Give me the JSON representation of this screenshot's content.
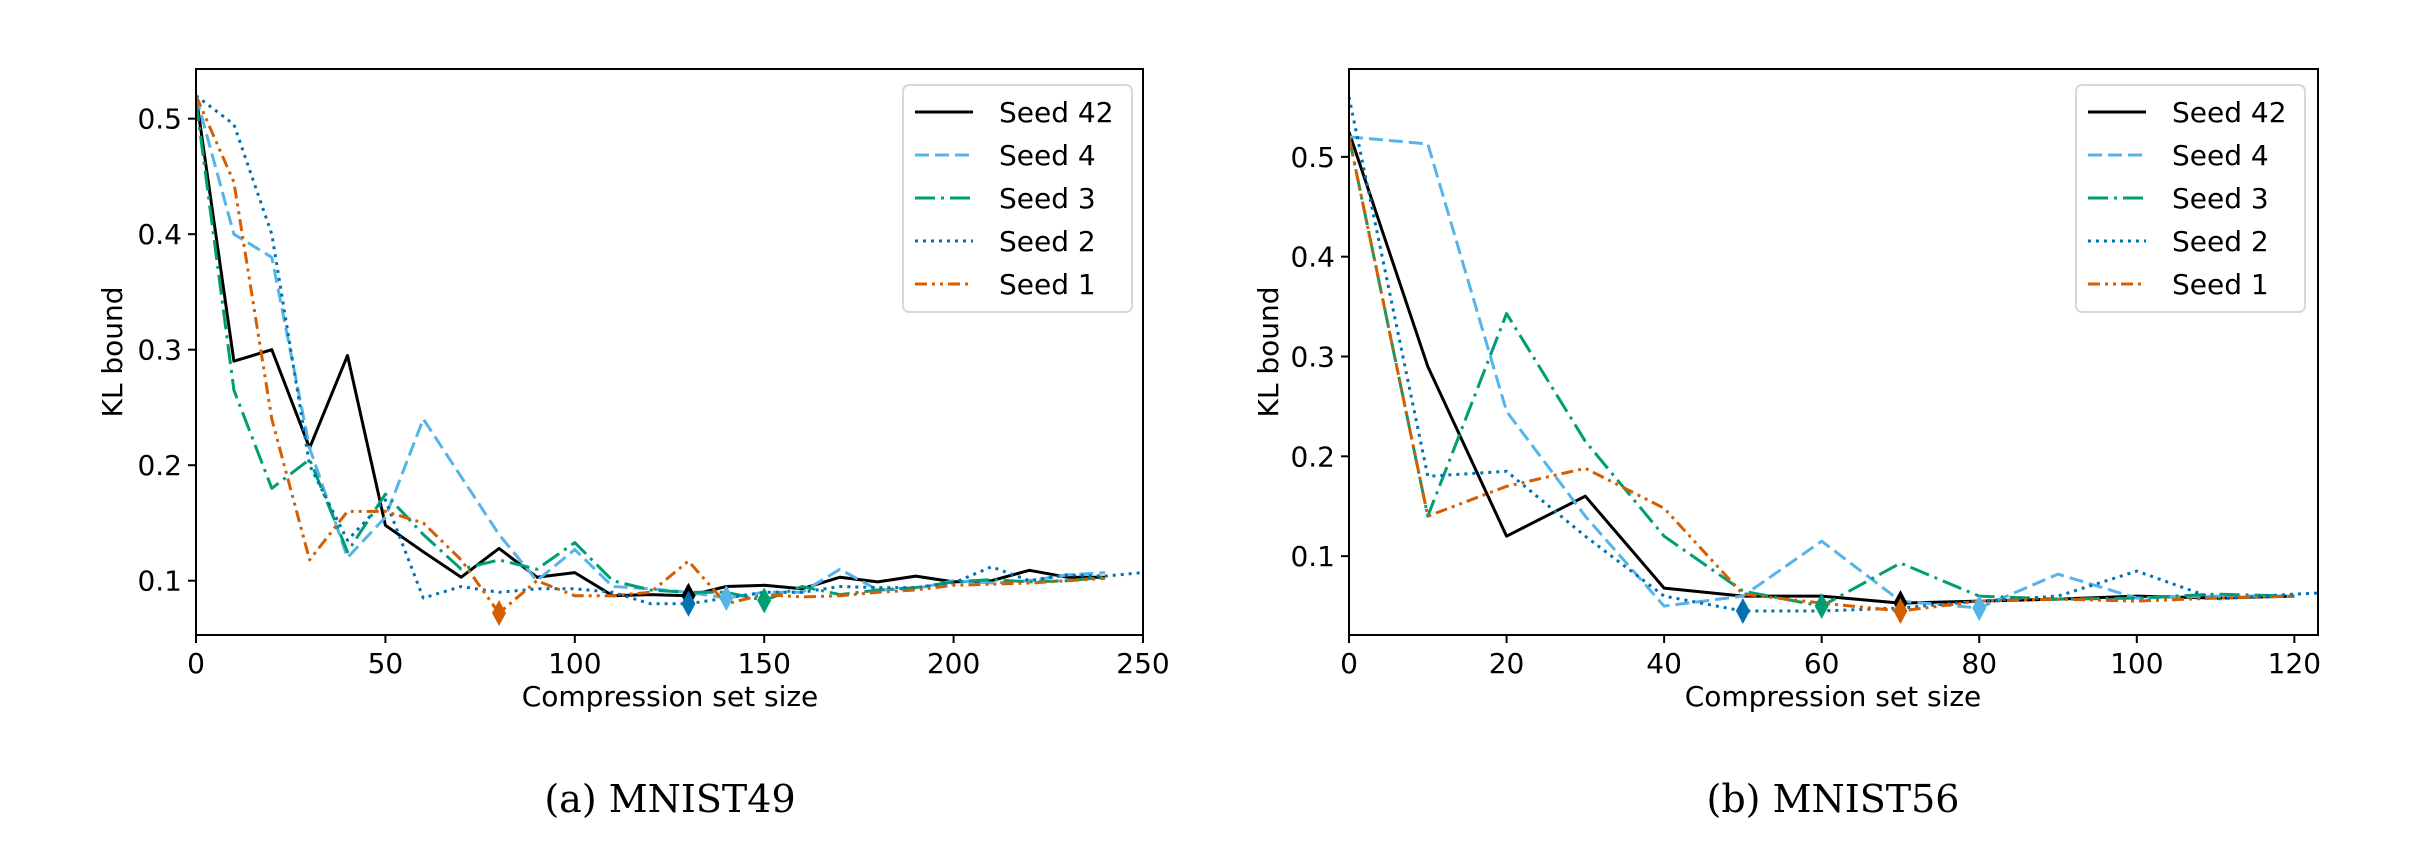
{
  "chart_data": [
    {
      "type": "line",
      "caption": "(a) MNIST49",
      "xlabel": "Compression set size",
      "ylabel": "KL bound",
      "xlim": [
        0,
        250
      ],
      "ylim": [
        0.053,
        0.543
      ],
      "xticks": [
        0,
        50,
        100,
        150,
        200,
        250
      ],
      "yticks": [
        0.1,
        0.2,
        0.3,
        0.4,
        0.5
      ],
      "grid": false,
      "legend_placement": "top-right",
      "series": [
        {
          "name": "Seed 42",
          "color": "#000000",
          "style": "solid",
          "x": [
            0,
            10,
            20,
            30,
            40,
            50,
            60,
            70,
            80,
            90,
            100,
            110,
            120,
            130,
            140,
            150,
            160,
            170,
            180,
            190,
            200,
            210,
            220,
            230,
            240
          ],
          "y": [
            0.52,
            0.29,
            0.3,
            0.215,
            0.295,
            0.148,
            0.125,
            0.103,
            0.128,
            0.103,
            0.107,
            0.087,
            0.088,
            0.087,
            0.095,
            0.096,
            0.093,
            0.103,
            0.099,
            0.104,
            0.099,
            0.1,
            0.109,
            0.103,
            0.103
          ],
          "marker_x": 130,
          "marker_y": 0.087
        },
        {
          "name": "Seed 4",
          "color": "#56B4E9",
          "style": "dashed",
          "x": [
            0,
            10,
            20,
            30,
            40,
            50,
            60,
            70,
            80,
            90,
            100,
            110,
            120,
            130,
            140,
            150,
            160,
            170,
            180,
            190,
            200,
            210,
            220,
            230,
            240
          ],
          "y": [
            0.52,
            0.4,
            0.38,
            0.215,
            0.12,
            0.155,
            0.24,
            0.19,
            0.14,
            0.1,
            0.127,
            0.095,
            0.093,
            0.09,
            0.085,
            0.09,
            0.09,
            0.11,
            0.092,
            0.093,
            0.1,
            0.098,
            0.1,
            0.105,
            0.107
          ],
          "marker_x": 140,
          "marker_y": 0.085
        },
        {
          "name": "Seed 3",
          "color": "#009E73",
          "style": "dashdot",
          "x": [
            0,
            10,
            20,
            30,
            40,
            50,
            60,
            70,
            80,
            90,
            100,
            110,
            120,
            130,
            140,
            150,
            160,
            170,
            180,
            190,
            200,
            210,
            220,
            230,
            240
          ],
          "y": [
            0.515,
            0.265,
            0.18,
            0.205,
            0.125,
            0.175,
            0.14,
            0.11,
            0.118,
            0.11,
            0.133,
            0.1,
            0.092,
            0.09,
            0.09,
            0.083,
            0.095,
            0.088,
            0.092,
            0.094,
            0.099,
            0.101,
            0.099,
            0.1,
            0.103
          ],
          "marker_x": 150,
          "marker_y": 0.083
        },
        {
          "name": "Seed 2",
          "color": "#0072B2",
          "style": "dotted",
          "x": [
            0,
            10,
            20,
            30,
            40,
            50,
            60,
            70,
            80,
            90,
            100,
            110,
            120,
            130,
            140,
            150,
            160,
            170,
            180,
            190,
            200,
            210,
            220,
            230,
            240,
            250
          ],
          "y": [
            0.52,
            0.495,
            0.4,
            0.2,
            0.135,
            0.17,
            0.085,
            0.095,
            0.09,
            0.093,
            0.093,
            0.09,
            0.08,
            0.08,
            0.085,
            0.09,
            0.09,
            0.095,
            0.094,
            0.094,
            0.098,
            0.112,
            0.1,
            0.105,
            0.104,
            0.107
          ],
          "marker_x": 130,
          "marker_y": 0.08
        },
        {
          "name": "Seed 1",
          "color": "#D55E00",
          "style": "dashdotdot",
          "x": [
            0,
            10,
            20,
            30,
            40,
            50,
            60,
            70,
            80,
            90,
            100,
            110,
            120,
            130,
            140,
            150,
            160,
            170,
            180,
            190,
            200,
            210,
            220,
            230,
            240
          ],
          "y": [
            0.52,
            0.445,
            0.24,
            0.118,
            0.16,
            0.16,
            0.15,
            0.118,
            0.072,
            0.1,
            0.087,
            0.087,
            0.09,
            0.117,
            0.08,
            0.088,
            0.086,
            0.087,
            0.09,
            0.092,
            0.096,
            0.097,
            0.098,
            0.1,
            0.102
          ],
          "marker_x": 80,
          "marker_y": 0.072
        }
      ]
    },
    {
      "type": "line",
      "caption": "(b) MNIST56",
      "xlabel": "Compression set size",
      "ylabel": "KL bound",
      "xlim": [
        0,
        123
      ],
      "ylim": [
        0.021,
        0.588
      ],
      "xticks": [
        0,
        20,
        40,
        60,
        80,
        100,
        120
      ],
      "yticks": [
        0.1,
        0.2,
        0.3,
        0.4,
        0.5
      ],
      "grid": false,
      "legend_placement": "top-right",
      "series": [
        {
          "name": "Seed 42",
          "color": "#000000",
          "style": "solid",
          "x": [
            0,
            10,
            20,
            30,
            40,
            50,
            60,
            70,
            80,
            90,
            100,
            110,
            120
          ],
          "y": [
            0.525,
            0.29,
            0.12,
            0.16,
            0.068,
            0.06,
            0.06,
            0.053,
            0.055,
            0.057,
            0.06,
            0.058,
            0.06
          ],
          "marker_x": 70,
          "marker_y": 0.053
        },
        {
          "name": "Seed 4",
          "color": "#56B4E9",
          "style": "dashed",
          "x": [
            0,
            10,
            20,
            30,
            40,
            50,
            60,
            70,
            80,
            90,
            100,
            110,
            120
          ],
          "y": [
            0.52,
            0.513,
            0.245,
            0.14,
            0.05,
            0.06,
            0.115,
            0.055,
            0.048,
            0.082,
            0.058,
            0.06,
            0.06
          ],
          "marker_x": 80,
          "marker_y": 0.048
        },
        {
          "name": "Seed 3",
          "color": "#009E73",
          "style": "dashdot",
          "x": [
            0,
            10,
            20,
            30,
            40,
            50,
            60,
            70,
            80,
            90,
            100,
            110,
            120
          ],
          "y": [
            0.52,
            0.14,
            0.343,
            0.215,
            0.12,
            0.065,
            0.05,
            0.093,
            0.06,
            0.057,
            0.058,
            0.062,
            0.06
          ],
          "marker_x": 60,
          "marker_y": 0.05
        },
        {
          "name": "Seed 2",
          "color": "#0072B2",
          "style": "dotted",
          "x": [
            0,
            10,
            20,
            30,
            40,
            50,
            60,
            70,
            80,
            90,
            100,
            110,
            120,
            123
          ],
          "y": [
            0.56,
            0.18,
            0.185,
            0.12,
            0.06,
            0.045,
            0.045,
            0.048,
            0.055,
            0.06,
            0.085,
            0.057,
            0.062,
            0.063
          ],
          "marker_x": 50,
          "marker_y": 0.045
        },
        {
          "name": "Seed 1",
          "color": "#D55E00",
          "style": "dashdotdot",
          "x": [
            0,
            10,
            20,
            30,
            40,
            50,
            60,
            70,
            80,
            90,
            100,
            110,
            120
          ],
          "y": [
            0.52,
            0.14,
            0.17,
            0.188,
            0.148,
            0.062,
            0.053,
            0.045,
            0.055,
            0.057,
            0.055,
            0.058,
            0.06
          ],
          "marker_x": 70,
          "marker_y": 0.045
        }
      ]
    }
  ]
}
